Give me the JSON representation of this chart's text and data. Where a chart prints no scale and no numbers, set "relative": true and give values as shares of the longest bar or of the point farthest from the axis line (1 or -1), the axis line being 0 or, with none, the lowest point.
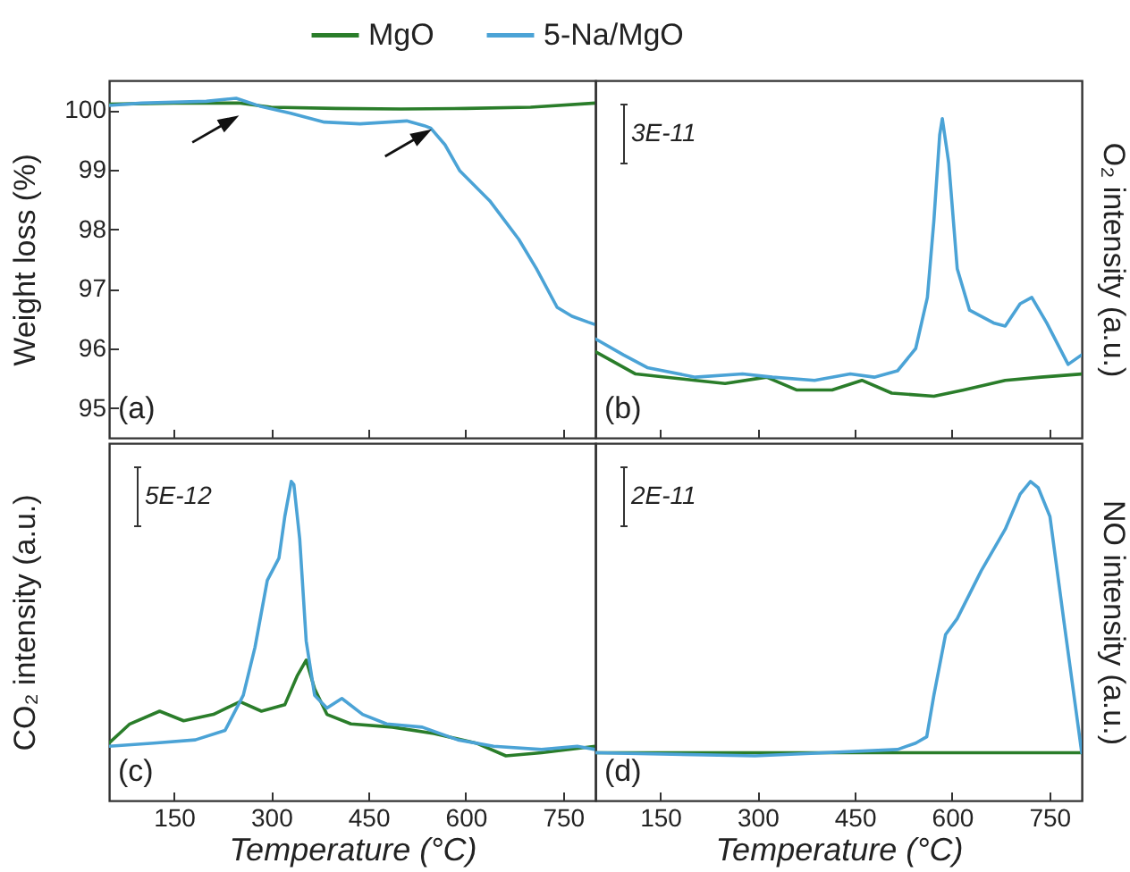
{
  "chart_data": [
    {
      "type": "line",
      "ylabel": "Weight loss (%)",
      "xlim": [
        50,
        800
      ],
      "xticks": [
        150,
        300,
        450,
        600,
        750
      ],
      "ylim": [
        94.5,
        100.5
      ],
      "yticks": [
        95,
        96,
        97,
        98,
        99,
        100
      ],
      "tick_labels": "y",
      "legend": "top",
      "annotations": [
        "(a)"
      ],
      "series": [
        {
          "name": "MgO",
          "color": "#2a7d2a",
          "x": [
            50,
            150,
            250,
            300,
            400,
            500,
            600,
            700,
            800
          ],
          "values": [
            100.1,
            100.12,
            100.12,
            100.05,
            100.03,
            100.02,
            100.03,
            100.05,
            100.12
          ]
        },
        {
          "name": "5-Na/MgO",
          "color": "#4ba3d6",
          "x": [
            50,
            100,
            200,
            246,
            282,
            330,
            382,
            437,
            509,
            536,
            546,
            568,
            591,
            637,
            682,
            709,
            741,
            764,
            789,
            800
          ],
          "values": [
            100.08,
            100.12,
            100.15,
            100.2,
            100.07,
            99.95,
            99.8,
            99.77,
            99.82,
            99.74,
            99.7,
            99.42,
            98.98,
            98.48,
            97.83,
            97.34,
            96.69,
            96.54,
            96.44,
            96.4
          ]
        }
      ]
    },
    {
      "type": "line",
      "ylabel": "O₂ intensity (a.u.)",
      "xlim": [
        50,
        800
      ],
      "xticks": [
        150,
        300,
        450,
        600,
        750
      ],
      "relative": true,
      "tick_labels": false,
      "annotations": [
        "(b)",
        "3E-11"
      ],
      "series": [
        {
          "color": "#2a7d2a",
          "x": [
            50,
            112,
            204,
            250,
            314,
            360,
            415,
            461,
            507,
            572,
            618,
            682,
            737,
            800
          ],
          "values": [
            0.27,
            0.2,
            0.18,
            0.17,
            0.19,
            0.15,
            0.15,
            0.18,
            0.14,
            0.13,
            0.15,
            0.18,
            0.19,
            0.2
          ]
        },
        {
          "color": "#4ba3d6",
          "x": [
            50,
            93,
            130,
            204,
            277,
            323,
            388,
            443,
            480,
            516,
            544,
            562,
            572,
            581,
            585,
            595,
            608,
            627,
            664,
            682,
            705,
            723,
            746,
            779,
            800
          ],
          "values": [
            0.31,
            0.26,
            0.22,
            0.19,
            0.2,
            0.19,
            0.18,
            0.2,
            0.19,
            0.21,
            0.28,
            0.44,
            0.68,
            0.95,
            1,
            0.86,
            0.53,
            0.4,
            0.36,
            0.35,
            0.42,
            0.44,
            0.36,
            0.23,
            0.26
          ]
        }
      ]
    },
    {
      "type": "line",
      "ylabel": "CO₂ intensity (a.u.)",
      "xlabel": "Temperature (°C)",
      "xlim": [
        50,
        800
      ],
      "xticks": [
        150,
        300,
        450,
        600,
        750
      ],
      "relative": true,
      "tick_labels": "x",
      "annotations": [
        "(c)",
        "5E-12"
      ],
      "series": [
        {
          "color": "#2a7d2a",
          "x": [
            50,
            82,
            128,
            165,
            211,
            252,
            285,
            321,
            340,
            354,
            367,
            386,
            423,
            487,
            551,
            616,
            662,
            717,
            800
          ],
          "values": [
            0.18,
            0.24,
            0.28,
            0.25,
            0.27,
            0.31,
            0.28,
            0.3,
            0.39,
            0.44,
            0.35,
            0.27,
            0.24,
            0.23,
            0.21,
            0.18,
            0.14,
            0.15,
            0.17
          ]
        },
        {
          "color": "#4ba3d6",
          "x": [
            50,
            119,
            183,
            229,
            257,
            275,
            294,
            312,
            321,
            331,
            335,
            344,
            354,
            367,
            386,
            409,
            441,
            478,
            533,
            588,
            643,
            717,
            772,
            800
          ],
          "values": [
            0.17,
            0.18,
            0.19,
            0.22,
            0.33,
            0.48,
            0.69,
            0.76,
            0.89,
            1,
            0.99,
            0.82,
            0.5,
            0.33,
            0.29,
            0.32,
            0.27,
            0.24,
            0.23,
            0.19,
            0.17,
            0.16,
            0.17,
            0.16
          ]
        }
      ]
    },
    {
      "type": "line",
      "ylabel": "NO intensity (a.u.)",
      "xlabel": "Temperature (°C)",
      "xlim": [
        50,
        800
      ],
      "xticks": [
        150,
        300,
        450,
        600,
        750
      ],
      "relative": true,
      "tick_labels": "x",
      "annotations": [
        "(d)",
        "2E-11"
      ],
      "series": [
        {
          "color": "#2a7d2a",
          "x": [
            50,
            300,
            550,
            800
          ],
          "values": [
            0.15,
            0.15,
            0.15,
            0.15
          ]
        },
        {
          "color": "#4ba3d6",
          "x": [
            50,
            296,
            516,
            544,
            561,
            572,
            590,
            608,
            645,
            682,
            705,
            721,
            733,
            751,
            774,
            800
          ],
          "values": [
            0.15,
            0.14,
            0.16,
            0.18,
            0.2,
            0.33,
            0.52,
            0.57,
            0.72,
            0.85,
            0.96,
            1,
            0.98,
            0.89,
            0.54,
            0.15
          ]
        }
      ]
    }
  ]
}
